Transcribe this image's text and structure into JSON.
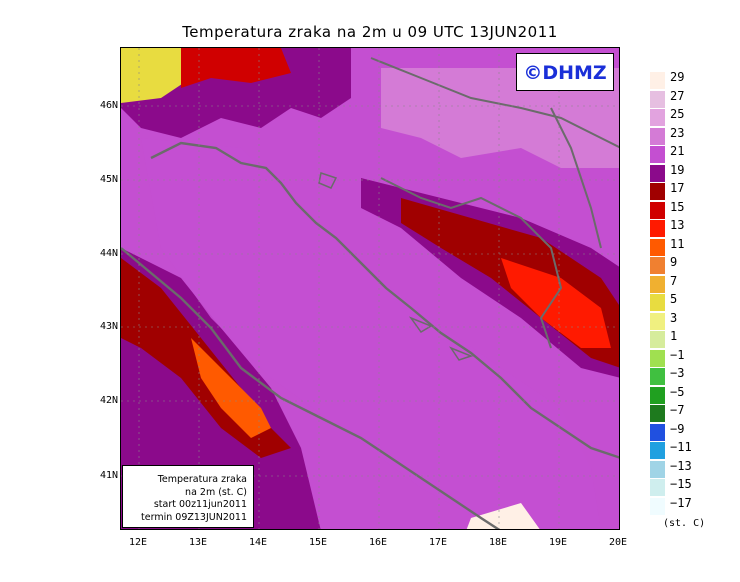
{
  "title": "Temperatura zraka na 2m u 09 UTC 13JUN2011",
  "copyright": "©DHMZ",
  "info_box": {
    "line1": "Temperatura zraka",
    "line2": "na 2m (st. C)",
    "line3": "start 00z11jun2011",
    "line4": "termin 09Z13JUN2011"
  },
  "map": {
    "lat_labels": [
      "46N",
      "45N",
      "44N",
      "43N",
      "42N",
      "41N"
    ],
    "lon_labels": [
      "12E",
      "13E",
      "14E",
      "15E",
      "16E",
      "17E",
      "18E",
      "19E",
      "20E"
    ],
    "lon_range": [
      11.7,
      20.0
    ],
    "lat_range": [
      40.3,
      46.8
    ]
  },
  "legend": {
    "labels": [
      "29",
      "27",
      "25",
      "23",
      "21",
      "19",
      "17",
      "15",
      "13",
      "11",
      "9",
      "7",
      "5",
      "3",
      "1",
      "−1",
      "−3",
      "−5",
      "−7",
      "−9",
      "−11",
      "−13",
      "−15",
      "−17"
    ],
    "colors": [
      "#fff0e6",
      "#e6bfe1",
      "#e2a3df",
      "#d47bd6",
      "#c44fd1",
      "#8b0a8b",
      "#a00000",
      "#d00000",
      "#ff1a00",
      "#ff5a00",
      "#f08030",
      "#f0b030",
      "#e8dc40",
      "#f0f080",
      "#d6ec9c",
      "#a0e050",
      "#40c040",
      "#20a020",
      "#1e7a1e",
      "#2050e0",
      "#20a0e0",
      "#a0d4e6",
      "#cfeeee",
      "#f0fcff"
    ],
    "unit": "(st. C)"
  }
}
